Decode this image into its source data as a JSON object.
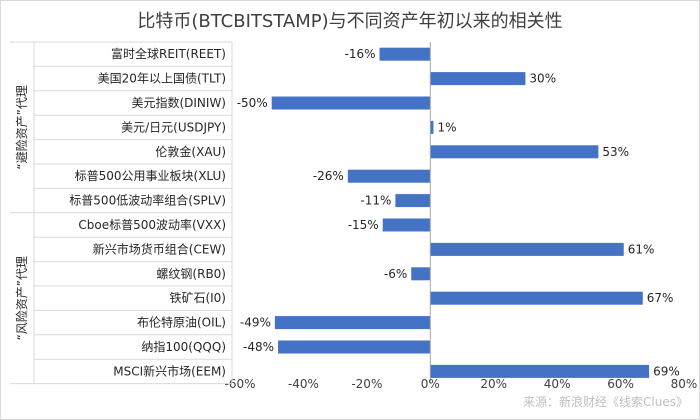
{
  "chart_data": {
    "type": "bar",
    "orientation": "horizontal",
    "title": "比特币(BTCBITSTAMP)与不同资产年初以来的相关性",
    "categories": [
      "富时全球REIT(REET)",
      "美国20年以上国债(TLT)",
      "美元指数(DINIW)",
      "美元/日元(USDJPY)",
      "伦敦金(XAU)",
      "标普500公用事业板块(XLU)",
      "标普500低波动率组合(SPLV)",
      "Cboe标普500波动率(VXX)",
      "新兴市场货币组合(CEW)",
      "螺纹钢(RB0)",
      "铁矿石(I0)",
      "布伦特原油(OIL)",
      "纳指100(QQQ)",
      "MSCI新兴市场(EEM)"
    ],
    "values": [
      -16,
      30,
      -50,
      1,
      53,
      -26,
      -11,
      -15,
      61,
      -6,
      67,
      -49,
      -48,
      69
    ],
    "value_labels": [
      "-16%",
      "30%",
      "-50%",
      "1%",
      "53%",
      "-26%",
      "-11%",
      "-15%",
      "61%",
      "-6%",
      "67%",
      "-49%",
      "-48%",
      "69%"
    ],
    "xlim": [
      -60,
      80
    ],
    "xticks": [
      -60,
      -40,
      -20,
      0,
      20,
      40,
      60,
      80
    ],
    "xtick_labels": [
      "-60%",
      "-40%",
      "-20%",
      "0%",
      "20%",
      "40%",
      "60%",
      "80%"
    ],
    "groups": [
      {
        "label": "“避险资产”代理",
        "start": 0,
        "end": 6
      },
      {
        "label": "“风险资产”代理",
        "start": 7,
        "end": 13
      }
    ],
    "bar_color": "#4472c4",
    "grid": false
  },
  "source": "来源：新浪财经《线索Clues》"
}
